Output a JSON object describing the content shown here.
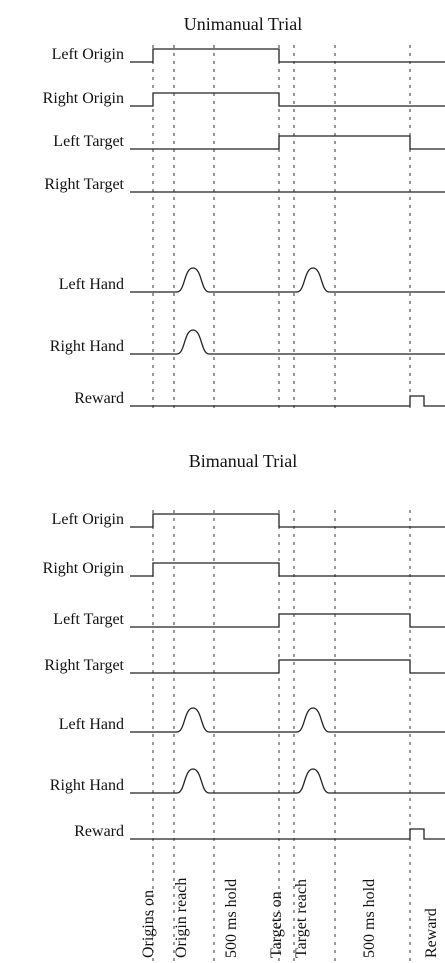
{
  "panels": [
    {
      "title": "Unimanual Trial",
      "signals": [
        "Left Origin",
        "Right Origin",
        "Left Target",
        "Right Target",
        "Left Hand",
        "Right Hand",
        "Reward"
      ]
    },
    {
      "title": "Bimanual Trial",
      "signals": [
        "Left Origin",
        "Right Origin",
        "Left Target",
        "Right Target",
        "Left Hand",
        "Right Hand",
        "Reward"
      ]
    }
  ],
  "events": [
    "Origins on",
    "Origin reach",
    "500 ms hold",
    "Targets on",
    "Target reach",
    "500 ms hold",
    "Reward"
  ]
}
